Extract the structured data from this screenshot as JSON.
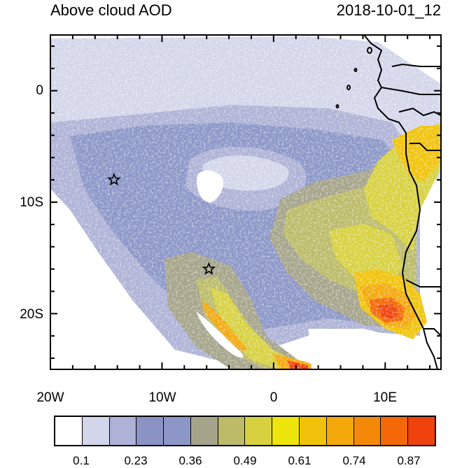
{
  "title": "Above cloud AOD",
  "timestamp": "2018-10-01_12",
  "lon_labels": [
    "20W",
    "10W",
    "0",
    "10E"
  ],
  "lat_labels": [
    "0",
    "10S",
    "20S"
  ],
  "extent": {
    "lon": [
      -20,
      15
    ],
    "lat": [
      -25,
      5
    ]
  },
  "colorbar": {
    "colors": [
      "#ffffff",
      "#d3d6ea",
      "#aeb2d6",
      "#8b93c4",
      "#8c97c8",
      "#a5a48a",
      "#bcbb68",
      "#d7d140",
      "#ede50c",
      "#f0c30a",
      "#f3a90c",
      "#f48908",
      "#f46808",
      "#f0420c"
    ],
    "tick_labels": [
      "0.1",
      "0.23",
      "0.36",
      "0.49",
      "0.61",
      "0.74",
      "0.87"
    ]
  },
  "markers": [
    {
      "name": "star",
      "lon": -14.3,
      "lat": -8.0
    },
    {
      "name": "star",
      "lon": -5.8,
      "lat": -16.0
    }
  ]
}
